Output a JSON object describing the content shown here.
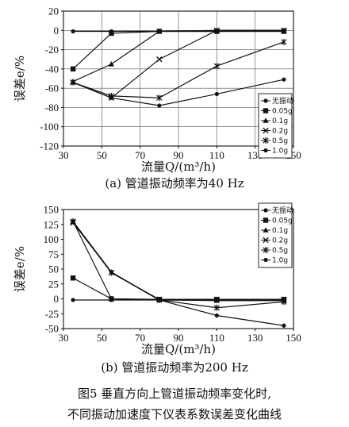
{
  "chart_data": [
    {
      "type": "line",
      "caption": "(a)  管道振动频率为40 Hz",
      "xlabel": "流量Q/(m³/h)",
      "ylabel": "误差e/%",
      "xlim": [
        30,
        150
      ],
      "ylim": [
        -120,
        20
      ],
      "xticks": [
        30,
        50,
        70,
        90,
        110,
        130,
        150
      ],
      "yticks": [
        20,
        0,
        -20,
        -40,
        -60,
        -80,
        -100,
        -120
      ],
      "grid": true,
      "legend": "right",
      "series": [
        {
          "name": "无振动",
          "marker": "dot",
          "x": [
            35,
            55,
            80,
            110,
            145
          ],
          "y": [
            -1,
            -1,
            -1,
            -1,
            -1
          ]
        },
        {
          "name": "0.05g",
          "marker": "square",
          "x": [
            35,
            55,
            80,
            110,
            145
          ],
          "y": [
            -40,
            -3,
            -1,
            -1,
            -1
          ]
        },
        {
          "name": "0.1g",
          "marker": "triangle",
          "x": [
            35,
            55,
            80,
            110,
            145
          ],
          "y": [
            -53,
            -35,
            -1,
            0,
            0
          ]
        },
        {
          "name": "0.2g",
          "marker": "cross",
          "x": [
            35,
            55,
            80,
            110,
            145
          ],
          "y": [
            -54,
            -70,
            -30,
            0,
            0
          ]
        },
        {
          "name": "0.5g",
          "marker": "star",
          "x": [
            35,
            55,
            80,
            110,
            145
          ],
          "y": [
            -54,
            -68,
            -70,
            -37,
            -12
          ]
        },
        {
          "name": "1.0g",
          "marker": "dot",
          "x": [
            35,
            55,
            80,
            110,
            145
          ],
          "y": [
            -54,
            -70,
            -78,
            -66,
            -51
          ]
        }
      ]
    },
    {
      "type": "line",
      "caption": "(b)  管道振动频率为200 Hz",
      "xlabel": "流量Q/(m³/h)",
      "ylabel": "误差e/%",
      "xlim": [
        30,
        150
      ],
      "ylim": [
        -50,
        150
      ],
      "xticks": [
        30,
        50,
        70,
        90,
        110,
        130,
        150
      ],
      "yticks": [
        150,
        125,
        100,
        75,
        50,
        25,
        0,
        -25,
        -50
      ],
      "grid": false,
      "legend": "top-right",
      "series": [
        {
          "name": "无振动",
          "marker": "dot",
          "x": [
            35,
            55,
            80,
            110,
            145
          ],
          "y": [
            -2,
            -2,
            -2,
            -2,
            -2
          ]
        },
        {
          "name": "0.05g",
          "marker": "square",
          "x": [
            35,
            55,
            80,
            110,
            145
          ],
          "y": [
            35,
            0,
            -1,
            -1,
            -1
          ]
        },
        {
          "name": "0.1g",
          "marker": "triangle",
          "x": [
            35,
            55,
            80,
            110,
            145
          ],
          "y": [
            130,
            0,
            -2,
            -3,
            -3
          ]
        },
        {
          "name": "0.2g",
          "marker": "cross",
          "x": [
            35,
            55,
            80,
            110,
            145
          ],
          "y": [
            128,
            44,
            -1,
            -1,
            -1
          ]
        },
        {
          "name": "0.5g",
          "marker": "star",
          "x": [
            35,
            55,
            80,
            110,
            145
          ],
          "y": [
            130,
            44,
            -2,
            -15,
            -5
          ]
        },
        {
          "name": "1.0g",
          "marker": "dot",
          "x": [
            35,
            55,
            80,
            110,
            145
          ],
          "y": [
            130,
            45,
            -2,
            -28,
            -45
          ]
        }
      ]
    }
  ],
  "figure_caption": {
    "line1": "图5 垂直方向上管道振动频率变化时,",
    "line2": "不同振动加速度下仪表系数误差变化曲线"
  },
  "colors": {
    "line": "#111111",
    "grid": "#555555",
    "background": "#ffffff"
  }
}
